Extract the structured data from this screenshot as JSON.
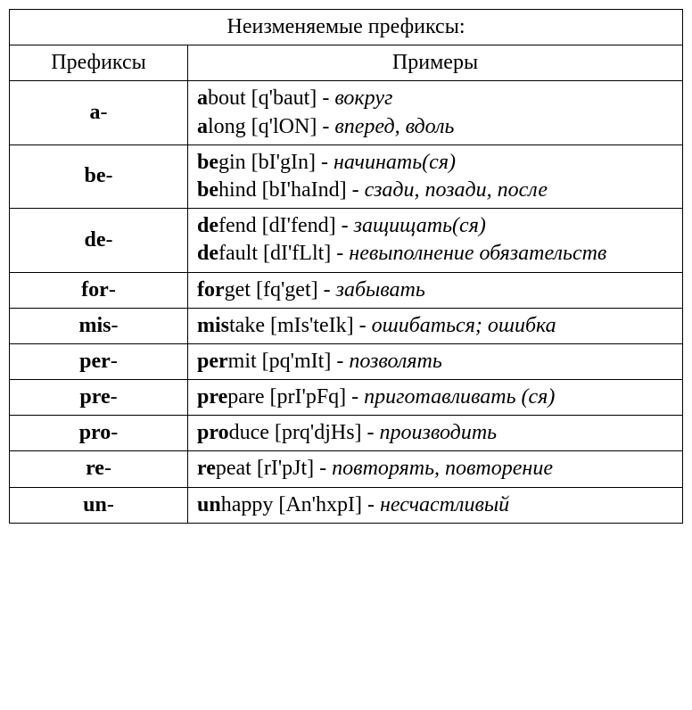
{
  "table": {
    "title": "Неизменяемые префиксы:",
    "col_prefix": "Префиксы",
    "col_examples": "Примеры",
    "rows": [
      {
        "prefix_bold": "a",
        "prefix_tail": "-",
        "examples": [
          {
            "word_b": "a",
            "word_rest": "bout",
            "phon": "[q'baut]",
            "dash": " - ",
            "trans": "вокруг"
          },
          {
            "word_b": "a",
            "word_rest": "long",
            "phon": "[q'lON]",
            "dash": " - ",
            "trans": "вперед, вдоль"
          }
        ]
      },
      {
        "prefix_bold": "be",
        "prefix_tail": "-",
        "examples": [
          {
            "word_b": "be",
            "word_rest": "gin",
            "phon": "[bI'gIn]",
            "dash": " - ",
            "trans": "начинать(ся)"
          },
          {
            "word_b": "be",
            "word_rest": "hind",
            "phon": "[bI'haInd]",
            "dash": " - ",
            "trans": "сзади, позади, после"
          }
        ]
      },
      {
        "prefix_bold": "de",
        "prefix_tail": "-",
        "examples": [
          {
            "word_b": "de",
            "word_rest": "fend",
            "phon": "[dI'fend]",
            "dash": " - ",
            "trans": "защищать(ся)"
          },
          {
            "word_b": "de",
            "word_rest": "fault",
            "phon": "[dI'fLlt]",
            "dash": " - ",
            "trans": "невыполнение обязательств"
          }
        ]
      },
      {
        "prefix_bold": "for",
        "prefix_tail": "-",
        "examples": [
          {
            "word_b": "for",
            "word_rest": "get",
            "phon": "[fq'get]",
            "dash": " - ",
            "trans": "забывать"
          }
        ]
      },
      {
        "prefix_bold": "mis",
        "prefix_tail": "-",
        "examples": [
          {
            "word_b": "mis",
            "word_rest": "take",
            "phon": "[mIs'teIk]",
            "dash": " - ",
            "trans": "ошибаться; ошибка"
          }
        ]
      },
      {
        "prefix_bold": "per",
        "prefix_tail": "-",
        "examples": [
          {
            "word_b": "per",
            "word_rest": "mit",
            "phon": "[pq'mIt]",
            "dash": " - ",
            "trans": "позволять"
          }
        ]
      },
      {
        "prefix_bold": "pre",
        "prefix_tail": "-",
        "examples": [
          {
            "word_b": "pre",
            "word_rest": "pare",
            "phon": "[prI'pFq]",
            "dash": " - ",
            "trans": "приготавливать (ся)"
          }
        ]
      },
      {
        "prefix_bold": "pro",
        "prefix_tail": "-",
        "examples": [
          {
            "word_b": "pro",
            "word_rest": "duce",
            "phon": "[prq'djHs]",
            "dash": " - ",
            "trans": "производить"
          }
        ]
      },
      {
        "prefix_bold": "re",
        "prefix_tail": "-",
        "examples": [
          {
            "word_b": "re",
            "word_rest": "peat",
            "phon": "[rI'pJt]",
            "dash": " - ",
            "trans": "повторять, повторение"
          }
        ]
      },
      {
        "prefix_bold": "un",
        "prefix_tail": "-",
        "examples": [
          {
            "word_b": "un",
            "word_rest": "happy",
            "phon": "[An'hxpI]",
            "dash": " - ",
            "trans": "несчастливый"
          }
        ]
      }
    ]
  }
}
